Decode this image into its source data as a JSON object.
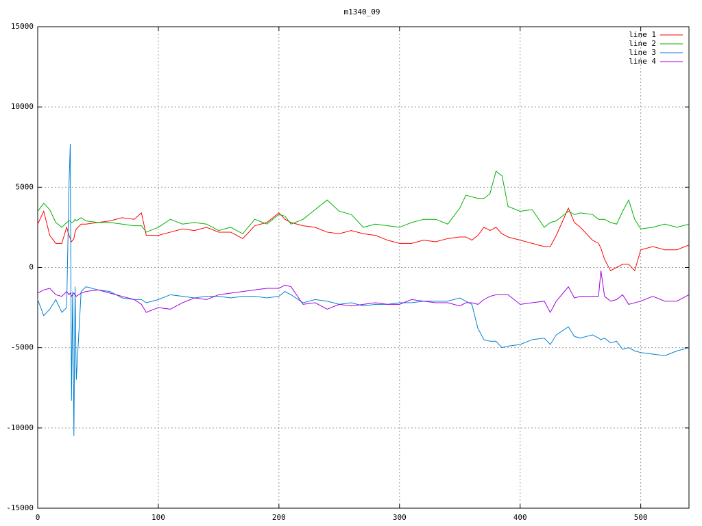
{
  "chart_data": {
    "type": "line",
    "title": "m1340_09",
    "x": [
      0,
      5,
      10,
      15,
      20,
      24,
      26,
      27,
      28,
      29,
      30,
      31,
      32,
      36,
      40,
      50,
      60,
      70,
      80,
      86,
      90,
      100,
      110,
      120,
      130,
      140,
      150,
      160,
      170,
      180,
      190,
      200,
      205,
      210,
      220,
      230,
      240,
      250,
      260,
      270,
      280,
      290,
      300,
      310,
      320,
      330,
      340,
      350,
      355,
      360,
      365,
      370,
      375,
      380,
      385,
      390,
      400,
      410,
      420,
      425,
      430,
      440,
      445,
      450,
      460,
      465,
      467,
      470,
      475,
      480,
      485,
      490,
      495,
      500,
      510,
      520,
      530,
      540
    ],
    "series": [
      {
        "name": "line 1",
        "color": "#ff0000",
        "values": [
          2700,
          3500,
          2000,
          1500,
          1500,
          2500,
          2000,
          1800,
          1600,
          1700,
          1800,
          2200,
          2400,
          2700,
          2700,
          2800,
          2900,
          3100,
          3000,
          3400,
          2000,
          2000,
          2200,
          2400,
          2300,
          2500,
          2200,
          2200,
          1800,
          2600,
          2800,
          3400,
          3000,
          2800,
          2600,
          2500,
          2200,
          2100,
          2300,
          2100,
          2000,
          1700,
          1500,
          1500,
          1700,
          1600,
          1800,
          1900,
          1900,
          1700,
          2000,
          2500,
          2300,
          2500,
          2100,
          1900,
          1700,
          1500,
          1300,
          1300,
          2000,
          3700,
          2800,
          2500,
          1700,
          1500,
          1200,
          500,
          -200,
          0,
          200,
          200,
          -200,
          1100,
          1300,
          1100,
          1100,
          1400
        ]
      },
      {
        "name": "line 2",
        "color": "#00b000",
        "values": [
          3500,
          4000,
          3600,
          2800,
          2500,
          2800,
          2900,
          2900,
          2800,
          2800,
          2900,
          3000,
          2900,
          3100,
          2900,
          2800,
          2800,
          2700,
          2600,
          2600,
          2200,
          2500,
          3000,
          2700,
          2800,
          2700,
          2300,
          2500,
          2100,
          3000,
          2700,
          3300,
          3200,
          2700,
          3000,
          3600,
          4200,
          3500,
          3300,
          2500,
          2700,
          2600,
          2500,
          2800,
          3000,
          3000,
          2700,
          3700,
          4500,
          4400,
          4300,
          4300,
          4600,
          6000,
          5700,
          3800,
          3500,
          3600,
          2500,
          2800,
          2900,
          3500,
          3300,
          3400,
          3300,
          3000,
          3000,
          3000,
          2800,
          2700,
          3500,
          4200,
          3000,
          2400,
          2500,
          2700,
          2500,
          2700
        ]
      },
      {
        "name": "line 3",
        "color": "#0080d0",
        "values": [
          -2000,
          -3000,
          -2600,
          -2000,
          -2800,
          -2500,
          5300,
          7700,
          -8300,
          -1500,
          -10500,
          -1200,
          -7000,
          -1500,
          -1200,
          -1400,
          -1500,
          -1900,
          -2000,
          -2000,
          -2200,
          -2000,
          -1700,
          -1800,
          -1900,
          -1800,
          -1800,
          -1900,
          -1800,
          -1800,
          -1900,
          -1800,
          -1500,
          -1700,
          -2200,
          -2000,
          -2100,
          -2300,
          -2200,
          -2400,
          -2300,
          -2300,
          -2200,
          -2200,
          -2100,
          -2100,
          -2100,
          -1900,
          -2100,
          -2300,
          -3800,
          -4500,
          -4600,
          -4600,
          -5000,
          -4900,
          -4800,
          -4500,
          -4400,
          -4800,
          -4200,
          -3700,
          -4300,
          -4400,
          -4200,
          -4400,
          -4500,
          -4400,
          -4700,
          -4600,
          -5100,
          -5000,
          -5200,
          -5300,
          -5400,
          -5500,
          -5200,
          -5000
        ]
      },
      {
        "name": "line 4",
        "color": "#a000e0",
        "values": [
          -1600,
          -1400,
          -1300,
          -1700,
          -1800,
          -1500,
          -1700,
          -1600,
          -1800,
          -1700,
          -1600,
          -1700,
          -1800,
          -1600,
          -1500,
          -1400,
          -1600,
          -1800,
          -2000,
          -2300,
          -2800,
          -2500,
          -2600,
          -2200,
          -1900,
          -2000,
          -1700,
          -1600,
          -1500,
          -1400,
          -1300,
          -1300,
          -1100,
          -1200,
          -2300,
          -2200,
          -2600,
          -2300,
          -2400,
          -2300,
          -2200,
          -2300,
          -2300,
          -2000,
          -2100,
          -2200,
          -2200,
          -2400,
          -2200,
          -2200,
          -2300,
          -2000,
          -1800,
          -1700,
          -1700,
          -1700,
          -2300,
          -2200,
          -2100,
          -2800,
          -2100,
          -1200,
          -1900,
          -1800,
          -1800,
          -1800,
          -200,
          -1800,
          -2100,
          -2000,
          -1700,
          -2300,
          -2200,
          -2100,
          -1800,
          -2100,
          -2100,
          -1700
        ]
      }
    ],
    "xlim": [
      0,
      540
    ],
    "xticks": [
      0,
      100,
      200,
      300,
      400,
      500
    ],
    "ylim": [
      -15000,
      15000
    ],
    "yticks": [
      -15000,
      -10000,
      -5000,
      0,
      5000,
      10000,
      15000
    ],
    "grid": true,
    "legend": "top-right"
  }
}
